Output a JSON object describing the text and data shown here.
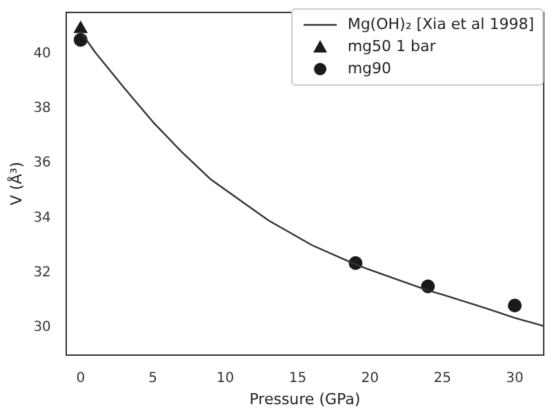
{
  "chart_data": {
    "type": "line",
    "xlabel": "Pressure (GPa)",
    "ylabel": "V (Å³)",
    "xlim": [
      -1,
      32
    ],
    "xticks": [
      0,
      5,
      10,
      15,
      20,
      25,
      30
    ],
    "ylim": [
      29,
      41.5
    ],
    "yticks": [
      30,
      32,
      34,
      36,
      38,
      40
    ],
    "grid": false,
    "legend": "top right",
    "series": [
      {
        "name": "Mg(OH)₂ [Xia et al 1998]",
        "marker": "none",
        "line_style": "solid",
        "color": "#333333",
        "x": [
          0,
          1,
          2,
          3,
          5,
          7,
          9,
          11.4,
          13,
          16,
          19,
          20,
          24,
          25,
          28,
          30,
          32
        ],
        "values": [
          40.8,
          40.05,
          39.4,
          38.75,
          37.5,
          36.4,
          35.4,
          34.5,
          33.9,
          33.0,
          32.3,
          32.1,
          31.35,
          31.2,
          30.7,
          30.35,
          30.05
        ]
      },
      {
        "name": "mg50 1 bar",
        "type": "scatter",
        "marker": "triangle",
        "color": "#1a1a1a",
        "x": [
          0
        ],
        "values": [
          40.9
        ]
      },
      {
        "name": "mg90",
        "type": "scatter",
        "marker": "circle",
        "color": "#1a1a1a",
        "x": [
          0,
          19,
          24,
          30
        ],
        "values": [
          40.5,
          32.35,
          31.5,
          30.8
        ]
      }
    ]
  }
}
